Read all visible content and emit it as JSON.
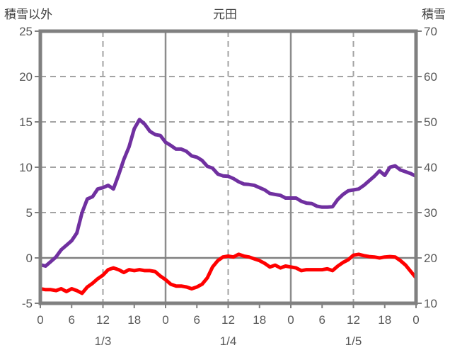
{
  "title": "元田",
  "left_axis_label": "積雪以外",
  "right_axis_label": "積雪",
  "colors": {
    "background": "#ffffff",
    "frame": "#808080",
    "grid_dashed": "#a3a3a3",
    "grid_solid": "#8c8c8c",
    "zero_line": "#808080",
    "tick_text": "#595959",
    "header_text": "#3f3f3f",
    "snow_line": "#7030a0",
    "temperature_line": "#ff0000"
  },
  "chart_data": {
    "type": "line",
    "title": "元田",
    "x_unit": "hour",
    "x_range_hours": [
      0,
      72
    ],
    "x_tick_interval_hours": 6,
    "x_tick_labels": [
      "0",
      "6",
      "12",
      "18",
      "0",
      "6",
      "12",
      "18",
      "0",
      "6",
      "12",
      "18",
      "0"
    ],
    "date_labels": [
      {
        "label": "1/3",
        "hour": 12
      },
      {
        "label": "1/4",
        "hour": 36
      },
      {
        "label": "1/5",
        "hour": 60
      }
    ],
    "left_axis": {
      "label": "積雪以外",
      "min": -5,
      "max": 25,
      "ticks": [
        25,
        20,
        15,
        10,
        5,
        0,
        -5
      ]
    },
    "right_axis": {
      "label": "積雪",
      "min": 10,
      "max": 70,
      "ticks": [
        70,
        60,
        50,
        40,
        30,
        20,
        10
      ]
    },
    "grid": {
      "horizontal_dashed_at_left_values": [
        20,
        15,
        10,
        5
      ],
      "zero_solid_at_left_value": 0,
      "vertical_dashed_at_hours": [
        12,
        36,
        60
      ],
      "vertical_solid_at_hours": [
        24,
        48
      ]
    },
    "series": [
      {
        "key": "snow",
        "name": "積雪",
        "axis": "right",
        "color": "#7030a0",
        "values": [
          18.5,
          18.2,
          19.2,
          20.2,
          21.8,
          22.8,
          23.8,
          25.5,
          30,
          33,
          33.5,
          35.2,
          35.5,
          36,
          35.2,
          38.3,
          41.7,
          44.5,
          48.5,
          50.5,
          49.5,
          47.9,
          47.2,
          47,
          45.5,
          44.8,
          44,
          44,
          43.5,
          42.5,
          42.2,
          41.5,
          40.2,
          39.8,
          38.5,
          38.1,
          38,
          37.5,
          36.8,
          36.3,
          36.2,
          36,
          35.5,
          35,
          34.2,
          34,
          33.8,
          33.2,
          33.2,
          33.2,
          32.5,
          32.1,
          32,
          31.4,
          31.2,
          31.2,
          31.3,
          32.9,
          34,
          34.8,
          35,
          35.2,
          36,
          37,
          38,
          39.2,
          38.2,
          40,
          40.3,
          39.4,
          39,
          38.6,
          38
        ]
      },
      {
        "key": "temperature",
        "name": "積雪以外",
        "axis": "left",
        "color": "#ff0000",
        "values": [
          -3.4,
          -3.5,
          -3.5,
          -3.6,
          -3.4,
          -3.7,
          -3.4,
          -3.6,
          -3.9,
          -3.2,
          -2.8,
          -2.3,
          -1.9,
          -1.3,
          -1.1,
          -1.3,
          -1.6,
          -1.3,
          -1.4,
          -1.3,
          -1.4,
          -1.4,
          -1.5,
          -2.0,
          -2.4,
          -2.9,
          -3.1,
          -3.1,
          -3.2,
          -3.4,
          -3.2,
          -2.9,
          -2.2,
          -1.0,
          -0.3,
          0.1,
          0.2,
          0.1,
          0.4,
          0.2,
          0.1,
          -0.1,
          -0.3,
          -0.6,
          -1.0,
          -0.8,
          -1.1,
          -0.9,
          -1.0,
          -1.1,
          -1.4,
          -1.3,
          -1.3,
          -1.3,
          -1.3,
          -1.2,
          -1.4,
          -0.9,
          -0.5,
          -0.2,
          0.3,
          0.4,
          0.25,
          0.15,
          0.1,
          0,
          0.1,
          0.15,
          0.1,
          -0.3,
          -0.8,
          -1.5,
          -2.2
        ]
      }
    ]
  }
}
